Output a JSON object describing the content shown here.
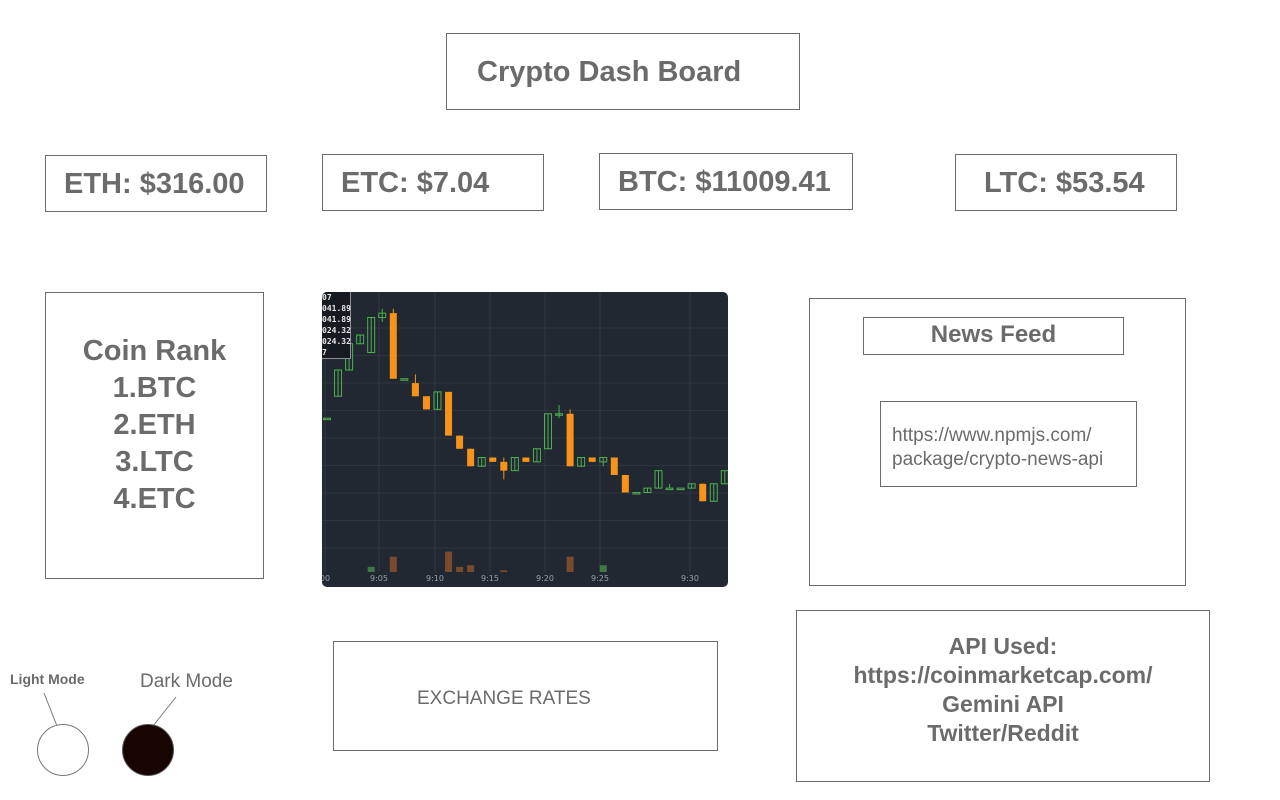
{
  "header": {
    "title": "Crypto Dash Board"
  },
  "prices": [
    {
      "label": "ETH: $316.00"
    },
    {
      "label": "ETC: $7.04"
    },
    {
      "label": "BTC: $11009.41"
    },
    {
      "label": "LTC: $53.54"
    }
  ],
  "coin_rank": {
    "title": "Coin Rank",
    "items": [
      "1.BTC",
      "2.ETH",
      "3.LTC",
      "4.ETC"
    ]
  },
  "chart": {
    "ohlc_lines": [
      "07",
      "041.89",
      "041.89",
      "024.32",
      "024.32",
      "7"
    ],
    "x_ticks": [
      "00",
      "9:05",
      "9:10",
      "9:15",
      "9:20",
      "9:25",
      "9:30"
    ],
    "colors": {
      "background": "#222831",
      "up": "#4caf50",
      "down": "#f7931a",
      "grid": "#3a4250"
    }
  },
  "chart_data": {
    "type": "candlestick",
    "x": [
      "9:00",
      "9:01",
      "9:02",
      "9:03",
      "9:04",
      "9:05",
      "9:06",
      "9:07",
      "9:08",
      "9:09",
      "9:10",
      "9:11",
      "9:12",
      "9:13",
      "9:14",
      "9:15",
      "9:16",
      "9:17",
      "9:18",
      "9:19",
      "9:20",
      "9:21",
      "9:22",
      "9:23",
      "9:24",
      "9:25",
      "9:26",
      "9:27",
      "9:28",
      "9:29",
      "9:30",
      "9:31",
      "9:32",
      "9:33",
      "9:34",
      "9:35",
      "9:36"
    ],
    "ohlc": [
      [
        21,
        21,
        21,
        21
      ],
      [
        26,
        32,
        26,
        32
      ],
      [
        32,
        38,
        32,
        38
      ],
      [
        38,
        40,
        38,
        40
      ],
      [
        36,
        44,
        36,
        44
      ],
      [
        44,
        46,
        43,
        45
      ],
      [
        45,
        46,
        30,
        30
      ],
      [
        30,
        30,
        30,
        30
      ],
      [
        29,
        31,
        26,
        26
      ],
      [
        26,
        26,
        23,
        23
      ],
      [
        23,
        27,
        23,
        27
      ],
      [
        27,
        27,
        17,
        17
      ],
      [
        17,
        17,
        14,
        14
      ],
      [
        14,
        14,
        10,
        10
      ],
      [
        10,
        12,
        10,
        12
      ],
      [
        12,
        12,
        11,
        11
      ],
      [
        11,
        12,
        7,
        9
      ],
      [
        9,
        12,
        9,
        12
      ],
      [
        12,
        12,
        11,
        11
      ],
      [
        11,
        14,
        11,
        14
      ],
      [
        14,
        22,
        14,
        22
      ],
      [
        22,
        24,
        21,
        22
      ],
      [
        22,
        23,
        10,
        10
      ],
      [
        10,
        12,
        10,
        12
      ],
      [
        12,
        12,
        11,
        11
      ],
      [
        11,
        12,
        10,
        12
      ],
      [
        12,
        12,
        8,
        8
      ],
      [
        8,
        8,
        4,
        4
      ],
      [
        4,
        4,
        4,
        4
      ],
      [
        4,
        5,
        4,
        5
      ],
      [
        5,
        9,
        5,
        9
      ],
      [
        5,
        6,
        5,
        5
      ],
      [
        5,
        5,
        5,
        5
      ],
      [
        5,
        6,
        5,
        6
      ],
      [
        6,
        6,
        2,
        2
      ],
      [
        2,
        6,
        2,
        6
      ],
      [
        6,
        9,
        6,
        9
      ]
    ],
    "volume": [
      0,
      0,
      0,
      0,
      3,
      0,
      9,
      0,
      0,
      0,
      0,
      12,
      3,
      4,
      0,
      0,
      1,
      0,
      0,
      0,
      0,
      0,
      9,
      0,
      0,
      4,
      0,
      0,
      0,
      0,
      0,
      0,
      0,
      0,
      0,
      0,
      0
    ]
  },
  "news": {
    "title": "News Feed",
    "link_line1": "https://www.npmjs.com/",
    "link_line2": "package/crypto-news-api"
  },
  "exchange": {
    "label": "EXCHANGE RATES"
  },
  "api": {
    "title": "API Used:",
    "line1": "https://coinmarketcap.com/",
    "line2": "Gemini API",
    "line3": "Twitter/Reddit"
  },
  "modes": {
    "light_label": "Light Mode",
    "dark_label": "Dark Mode",
    "light_color": "#ffffff",
    "dark_color": "#190404"
  }
}
